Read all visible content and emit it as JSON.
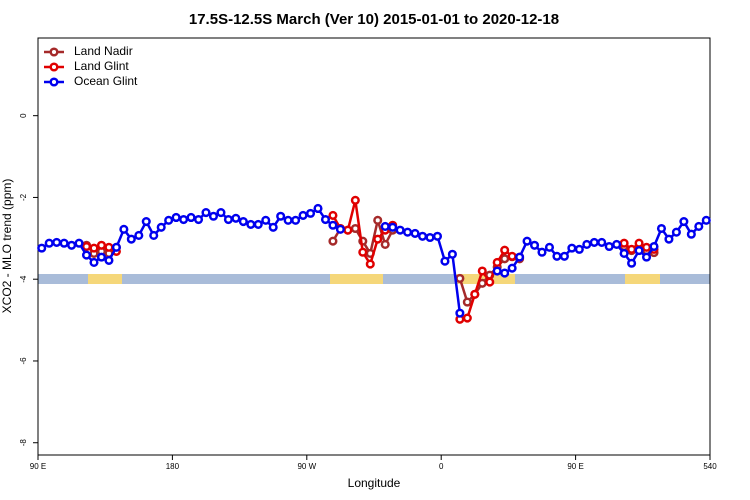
{
  "chart_data": {
    "type": "line",
    "title": "17.5S-12.5S March (Ver 10)   2015-01-01 to 2020-12-18",
    "xlabel": "Longitude",
    "ylabel": "XCO2 - MLO trend (ppm)",
    "xlim": [
      90,
      540
    ],
    "xticks": [
      {
        "value": 90,
        "label": "90 E"
      },
      180,
      {
        "value": 270,
        "label": "90 W"
      },
      {
        "value": 360,
        "label": "0"
      },
      {
        "value": 450,
        "label": "90 E"
      },
      540
    ],
    "ylim": [
      -8.3,
      1.9
    ],
    "yticks": [
      0,
      -2,
      -4,
      -6,
      -8
    ],
    "legend": "top-left",
    "series": [
      {
        "name": "Land Nadir",
        "color": "#a52a2a",
        "x": [
          122.5,
          127.5,
          132.5,
          137.5,
          142.5,
          215,
          287.5,
          292.5,
          297.5,
          302.5,
          307.5,
          312.5,
          317.5,
          322.5,
          327.5,
          350,
          372.5,
          377.5,
          382.5,
          387.5,
          392.5,
          397.5,
          402.5,
          407.5,
          412.5,
          450,
          482.5,
          487.5,
          492.5,
          497.5,
          502.5
        ],
        "values": [
          -3.17,
          -3.37,
          -3.32,
          -3.37,
          -3.22,
          null,
          -3.07,
          -2.76,
          -2.8,
          -2.76,
          -3.07,
          -3.37,
          -2.56,
          -3.15,
          -2.8,
          null,
          -3.98,
          -4.56,
          -4.37,
          -4.1,
          -3.9,
          -3.7,
          -3.5,
          -3.45,
          -3.5,
          null,
          -3.2,
          -3.3,
          -3.25,
          -3.3,
          -3.35
        ]
      },
      {
        "name": "Land Glint",
        "color": "#e00000",
        "x": [
          122.5,
          127.5,
          132.5,
          137.5,
          142.5,
          215,
          287.5,
          292.5,
          297.5,
          302.5,
          307.5,
          312.5,
          317.5,
          322.5,
          327.5,
          350,
          372.5,
          377.5,
          382.5,
          387.5,
          392.5,
          397.5,
          402.5,
          407.5,
          412.5,
          450,
          482.5,
          487.5,
          492.5,
          497.5,
          502.5
        ],
        "values": [
          -3.2,
          -3.24,
          -3.17,
          -3.22,
          -3.32,
          null,
          -2.44,
          -2.76,
          -2.8,
          -2.07,
          -3.34,
          -3.63,
          -3.02,
          -2.8,
          -2.68,
          null,
          -4.98,
          -4.95,
          -4.37,
          -3.8,
          -4.07,
          -3.59,
          -3.29,
          -3.44,
          -3.46,
          null,
          -3.12,
          -3.27,
          -3.12,
          -3.22,
          -3.27
        ]
      },
      {
        "name": "Ocean Glint",
        "color": "#0000ee",
        "x": [
          92.5,
          97.5,
          102.5,
          107.5,
          112.5,
          117.5,
          122.5,
          127.5,
          132.5,
          137.5,
          142.5,
          147.5,
          152.5,
          157.5,
          162.5,
          167.5,
          172.5,
          177.5,
          182.5,
          187.5,
          192.5,
          197.5,
          202.5,
          207.5,
          212.5,
          217.5,
          222.5,
          227.5,
          232.5,
          237.5,
          242.5,
          247.5,
          252.5,
          257.5,
          262.5,
          267.5,
          272.5,
          277.5,
          282.5,
          287.5,
          292.5,
          297.5,
          302.5,
          307.5,
          312.5,
          317.5,
          322.5,
          327.5,
          332.5,
          337.5,
          342.5,
          347.5,
          352.5,
          357.5,
          362.5,
          367.5,
          372.5,
          377.5,
          382.5,
          387.5,
          392.5,
          397.5,
          402.5,
          407.5,
          412.5,
          417.5,
          422.5,
          427.5,
          432.5,
          437.5,
          442.5,
          447.5,
          452.5,
          457.5,
          462.5,
          467.5,
          472.5,
          477.5,
          482.5,
          487.5,
          492.5,
          497.5,
          502.5,
          507.5,
          512.5,
          517.5,
          522.5,
          527.5,
          532.5,
          537.5
        ],
        "values": [
          -3.24,
          -3.12,
          -3.1,
          -3.12,
          -3.17,
          -3.12,
          -3.41,
          -3.59,
          -3.46,
          -3.54,
          -3.22,
          -2.78,
          -3.02,
          -2.93,
          -2.59,
          -2.93,
          -2.73,
          -2.56,
          -2.49,
          -2.54,
          -2.49,
          -2.54,
          -2.37,
          -2.46,
          -2.37,
          -2.54,
          -2.51,
          -2.59,
          -2.66,
          -2.66,
          -2.56,
          -2.73,
          -2.46,
          -2.56,
          -2.56,
          -2.44,
          -2.39,
          -2.27,
          -2.54,
          -2.68,
          -2.78,
          null,
          null,
          null,
          null,
          null,
          -2.71,
          -2.73,
          -2.8,
          -2.85,
          -2.88,
          -2.95,
          -2.98,
          -2.95,
          -3.56,
          -3.39,
          -4.83,
          null,
          null,
          null,
          null,
          -3.8,
          -3.85,
          -3.73,
          -3.46,
          -3.07,
          -3.17,
          -3.34,
          -3.22,
          -3.44,
          -3.44,
          -3.24,
          -3.27,
          -3.15,
          -3.1,
          -3.1,
          -3.2,
          -3.15,
          -3.37,
          -3.61,
          -3.3,
          -3.46,
          -3.2,
          -2.76,
          -3.02,
          -2.85,
          -2.59,
          -2.9,
          -2.71,
          -2.56
        ]
      }
    ]
  }
}
